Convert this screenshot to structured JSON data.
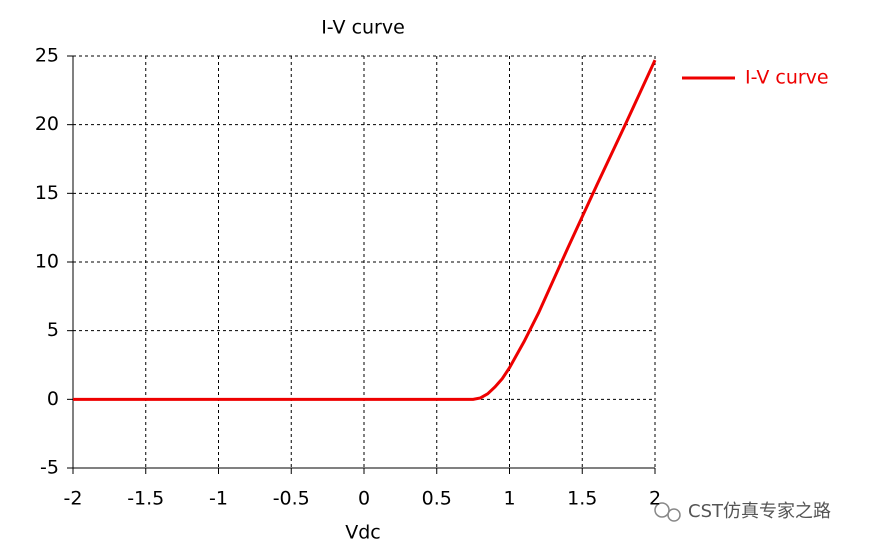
{
  "chart_data": {
    "type": "line",
    "title": "I-V curve",
    "x_label": "Vdc",
    "x": [
      -2,
      0.7,
      0.75,
      0.8,
      0.85,
      0.9,
      0.95,
      1.0,
      1.1,
      1.2,
      1.4,
      1.6,
      1.8,
      2.0
    ],
    "series": [
      {
        "name": "I-V curve",
        "color": "#ee0000",
        "values": [
          0,
          0,
          0,
          0.1,
          0.4,
          0.9,
          1.5,
          2.3,
          4.2,
          6.3,
          11,
          15.6,
          20.1,
          24.7
        ]
      }
    ],
    "xlim": [
      -2,
      2
    ],
    "xticks": [
      -2,
      -1.5,
      -1,
      -0.5,
      0,
      0.5,
      1,
      1.5,
      2
    ],
    "ylim": [
      -5,
      25
    ],
    "yticks": [
      -5,
      0,
      5,
      10,
      15,
      20,
      25
    ],
    "grid": true,
    "legend": "right"
  },
  "watermark": "CST仿真专家之路"
}
